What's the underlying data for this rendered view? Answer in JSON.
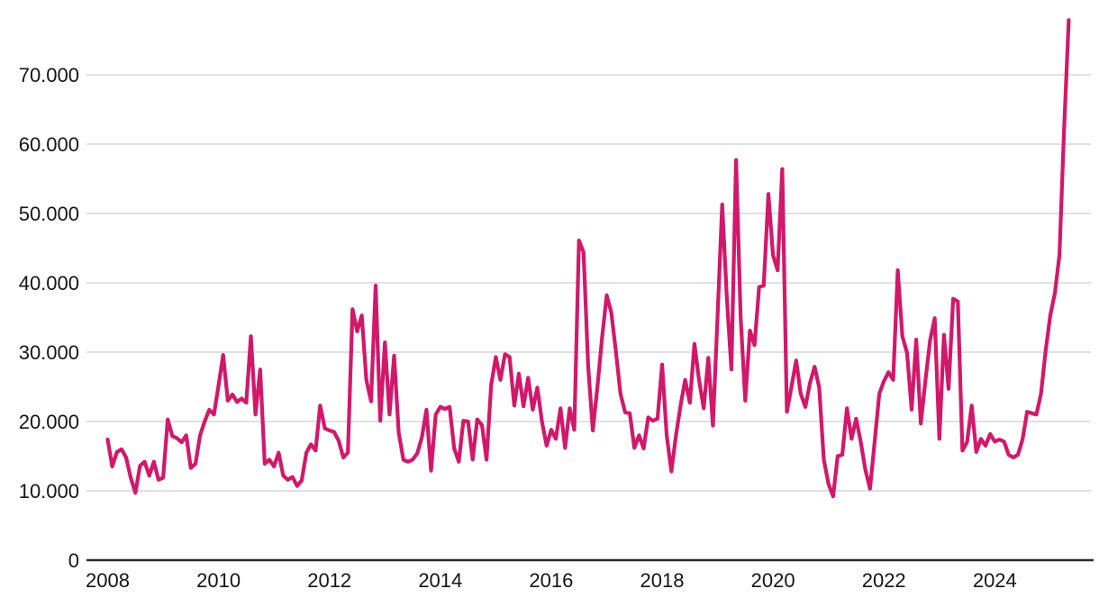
{
  "page": {
    "background_color": "#ffffff"
  },
  "chart_data": {
    "type": "line",
    "title": "",
    "subtitle": "",
    "xlabel": "",
    "ylabel": "",
    "legend": "none",
    "grid": true,
    "frequency": "monthly",
    "x_start": "2008-01",
    "x_end": "2025-05",
    "x_tick_labels": [
      "2008",
      "2010",
      "2012",
      "2014",
      "2016",
      "2018",
      "2020",
      "2022",
      "2024"
    ],
    "y_tick_labels": [
      "0",
      "10.000",
      "20.000",
      "30.000",
      "40.000",
      "50.000",
      "60.000",
      "70.000"
    ],
    "y_tick_values": [
      0,
      10000,
      20000,
      30000,
      40000,
      50000,
      60000,
      70000
    ],
    "ylim": [
      0,
      78500
    ],
    "line_color": "#d2186b",
    "axis_color": "#2a2a2a",
    "grid_color": "#dcdcdc",
    "label_color": "#141414",
    "series": [
      {
        "name": "monthly-value",
        "values": [
          17400,
          13500,
          15600,
          16000,
          14800,
          11900,
          9700,
          13600,
          14200,
          12200,
          14200,
          11600,
          11900,
          20300,
          17900,
          17600,
          17000,
          18000,
          13300,
          13900,
          18000,
          20000,
          21700,
          21000,
          25200,
          29600,
          23000,
          23900,
          22800,
          23300,
          22700,
          32300,
          21000,
          27500,
          13900,
          14500,
          13500,
          15500,
          12200,
          11600,
          12000,
          10700,
          11500,
          15500,
          16700,
          15800,
          22300,
          19000,
          18700,
          18500,
          17200,
          14800,
          15500,
          36200,
          33000,
          35300,
          26000,
          22900,
          39600,
          20100,
          31400,
          21000,
          29500,
          18400,
          14500,
          14200,
          14500,
          15400,
          17700,
          21700,
          12900,
          21000,
          22100,
          21800,
          22100,
          16100,
          14200,
          20100,
          20000,
          14500,
          20300,
          19500,
          14500,
          25200,
          29300,
          26000,
          29700,
          29300,
          22300,
          26900,
          22200,
          26300,
          21700,
          24900,
          20000,
          16500,
          18800,
          17500,
          21900,
          16200,
          21900,
          18800,
          46100,
          44400,
          28000,
          18700,
          25000,
          32000,
          38200,
          35700,
          30100,
          24000,
          21300,
          21200,
          16200,
          18000,
          16100,
          20600,
          20100,
          20400,
          28200,
          18000,
          12800,
          18000,
          22300,
          26000,
          22700,
          31200,
          26000,
          21900,
          29200,
          19400,
          35300,
          51300,
          38000,
          27500,
          57700,
          35000,
          23000,
          33100,
          31000,
          39400,
          39600,
          52800,
          44000,
          41800,
          56400,
          21400,
          25000,
          28800,
          24000,
          22100,
          25500,
          27900,
          24900,
          14500,
          11000,
          9200,
          15000,
          15200,
          21900,
          17500,
          20400,
          17000,
          13000,
          10300,
          17000,
          24000,
          25800,
          27100,
          26000,
          41800,
          32300,
          29900,
          21700,
          31800,
          19700,
          26000,
          31700,
          34900,
          17500,
          32500,
          24700,
          37700,
          37300,
          15800,
          17000,
          22300,
          15600,
          17500,
          16500,
          18200,
          17100,
          17400,
          17100,
          15200,
          14800,
          15200,
          17400,
          21400,
          21200,
          21000,
          24000,
          30100,
          35300,
          38500,
          44000,
          62000,
          77900
        ]
      }
    ]
  }
}
